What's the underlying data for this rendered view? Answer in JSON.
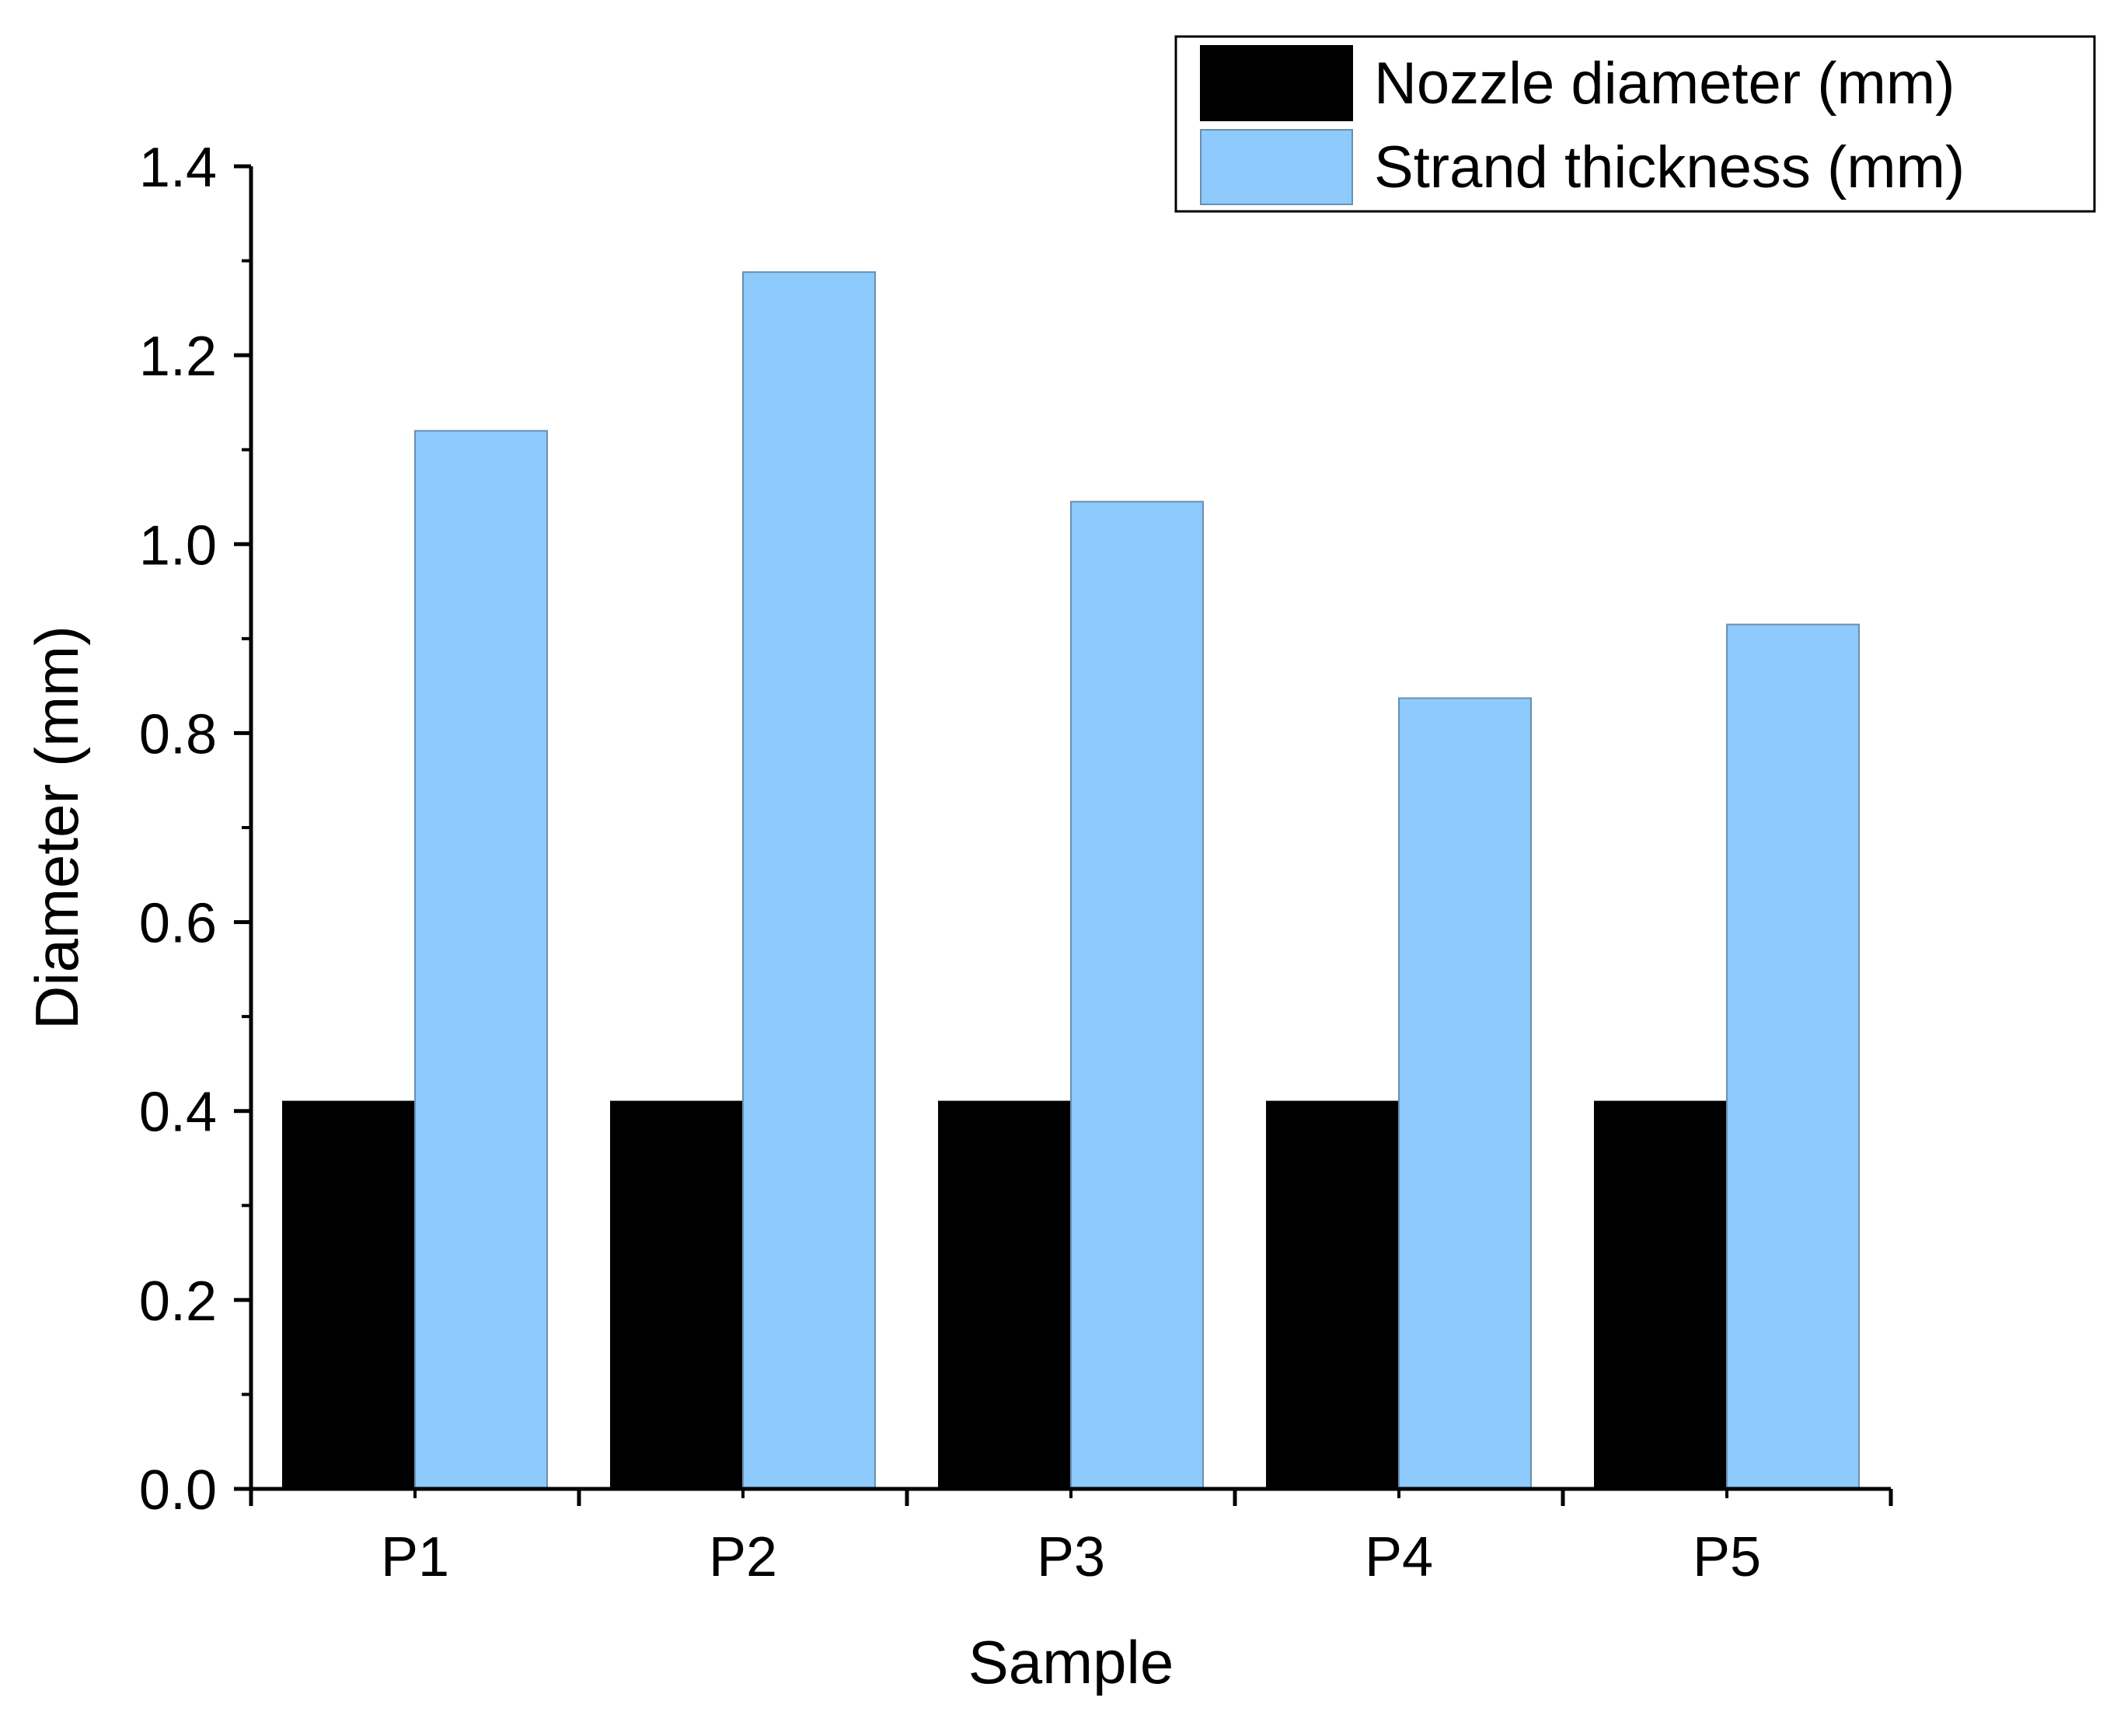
{
  "chart_data": {
    "type": "bar",
    "categories": [
      "P1",
      "P2",
      "P3",
      "P4",
      "P5"
    ],
    "series": [
      {
        "name": "Nozzle diameter (mm)",
        "color": "#000000",
        "values": [
          0.41,
          0.41,
          0.41,
          0.41,
          0.41
        ]
      },
      {
        "name": "Strand thickness (mm)",
        "color": "#8ECAFB",
        "values": [
          1.12,
          1.288,
          1.045,
          0.837,
          0.915
        ]
      }
    ],
    "xlabel": "Sample",
    "ylabel": "Diameter (mm)",
    "ylim": [
      0,
      1.4
    ],
    "yticks": [
      "0.0",
      "0.2",
      "0.4",
      "0.6",
      "0.8",
      "1.0",
      "1.2",
      "1.4"
    ],
    "grid": false,
    "legend_position": "top-right"
  }
}
